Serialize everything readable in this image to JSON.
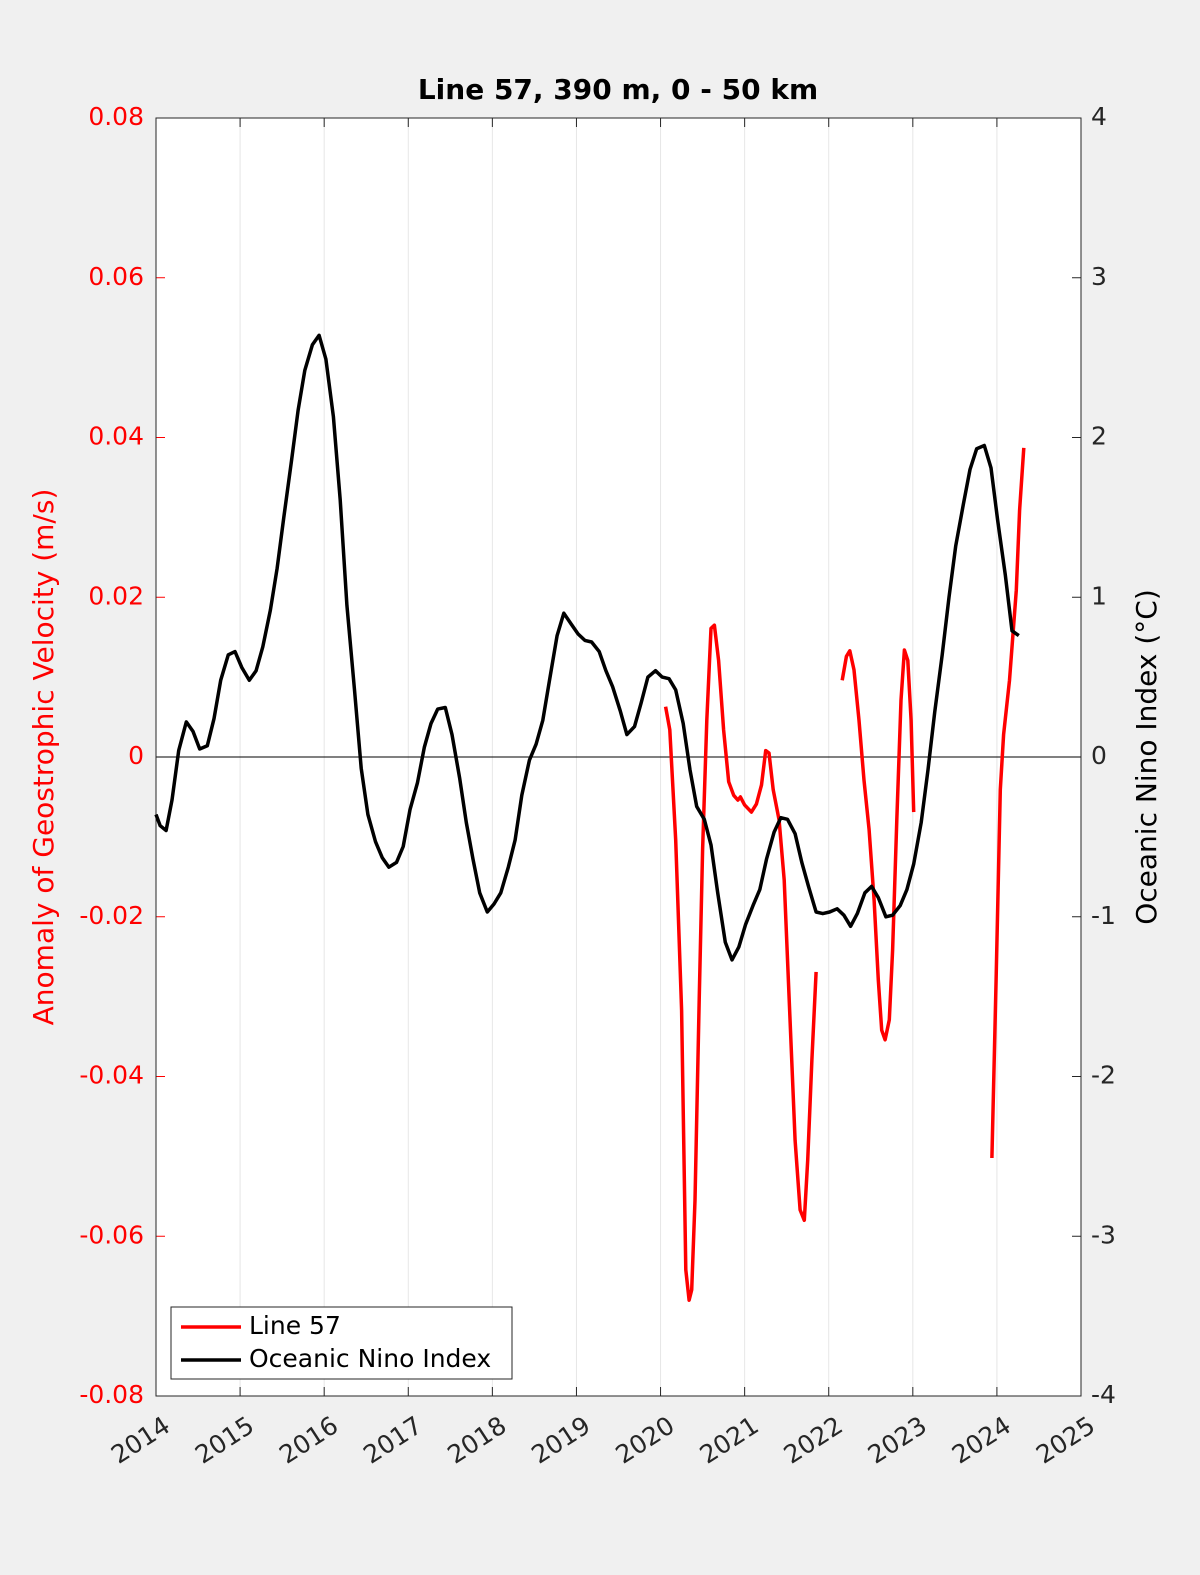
{
  "chart_data": {
    "type": "line",
    "title": "Line 57, 390 m, 0 - 50 km",
    "ylabel": "Anomaly of Geostrophic Velocity (m/s)",
    "y2label": "Oceanic Nino Index (°C)",
    "xlim": [
      2014,
      2025
    ],
    "xticks": [
      2014,
      2015,
      2016,
      2017,
      2018,
      2019,
      2020,
      2021,
      2022,
      2023,
      2024,
      2025
    ],
    "ylim": [
      -0.08,
      0.08
    ],
    "yticks": [
      -0.08,
      -0.06,
      -0.04,
      -0.02,
      0,
      0.02,
      0.04,
      0.06,
      0.08
    ],
    "y2lim": [
      -4,
      4
    ],
    "y2ticks": [
      -4,
      -3,
      -2,
      -1,
      0,
      1,
      2,
      3,
      4
    ],
    "xgrid": true,
    "zero_line": true,
    "ylabel_color": "#ff0000",
    "legend": "lower left",
    "series": [
      {
        "name": "Line 57",
        "color": "#ff0000",
        "axis": "y",
        "x": [
          2020.06,
          2020.11,
          2020.18,
          2020.25,
          2020.3,
          2020.34,
          2020.37,
          2020.41,
          2020.46,
          2020.5,
          2020.55,
          2020.6,
          2020.64,
          2020.69,
          2020.75,
          2020.81,
          2020.87,
          2020.92,
          2020.95,
          2021.0,
          2021.08,
          2021.14,
          2021.2,
          2021.25,
          2021.29,
          2021.34,
          2021.41,
          2021.47,
          2021.53,
          2021.6,
          2021.66,
          2021.71,
          2021.75,
          2021.8,
          2021.85,
          null,
          2022.16,
          2022.21,
          2022.25,
          2022.3,
          2022.36,
          2022.42,
          2022.48,
          2022.54,
          2022.59,
          2022.63,
          2022.67,
          2022.72,
          2022.76,
          2022.81,
          2022.86,
          2022.9,
          2022.94,
          2022.98,
          2023.01,
          null,
          2023.94,
          2023.99,
          2024.04,
          2024.08,
          2024.15,
          2024.23,
          2024.27,
          2024.32
        ],
        "values": [
          0.0063,
          0.0034,
          -0.0104,
          -0.0317,
          -0.0642,
          -0.068,
          -0.0667,
          -0.0555,
          -0.0304,
          -0.0116,
          0.0046,
          0.0161,
          0.0165,
          0.0121,
          0.0034,
          -0.0031,
          -0.0048,
          -0.0054,
          -0.005,
          -0.006,
          -0.0069,
          -0.0059,
          -0.0035,
          0.0008,
          0.0005,
          -0.0041,
          -0.0079,
          -0.0154,
          -0.0304,
          -0.048,
          -0.0567,
          -0.058,
          -0.0505,
          -0.0379,
          -0.0269,
          null,
          0.0096,
          0.0126,
          0.0133,
          0.0109,
          0.0046,
          -0.0029,
          -0.0091,
          -0.0179,
          -0.0279,
          -0.0342,
          -0.0354,
          -0.0329,
          -0.0242,
          -0.0079,
          0.0071,
          0.0134,
          0.0121,
          0.0046,
          -0.0069,
          null,
          -0.0502,
          -0.0279,
          -0.0041,
          0.0028,
          0.0096,
          0.0209,
          0.0309,
          0.0387
        ]
      },
      {
        "name": "Oceanic Nino Index",
        "color": "#000000",
        "axis": "y2",
        "x": [
          2014.0,
          2014.05,
          2014.12,
          2014.19,
          2014.27,
          2014.36,
          2014.44,
          2014.52,
          2014.61,
          2014.69,
          2014.77,
          2014.86,
          2014.94,
          2015.02,
          2015.11,
          2015.19,
          2015.27,
          2015.36,
          2015.44,
          2015.52,
          2015.61,
          2015.69,
          2015.77,
          2015.86,
          2015.94,
          2016.02,
          2016.11,
          2016.19,
          2016.27,
          2016.36,
          2016.44,
          2016.52,
          2016.61,
          2016.69,
          2016.77,
          2016.86,
          2016.94,
          2017.02,
          2017.11,
          2017.19,
          2017.27,
          2017.35,
          2017.44,
          2017.52,
          2017.61,
          2017.69,
          2017.77,
          2017.85,
          2017.94,
          2018.02,
          2018.1,
          2018.19,
          2018.27,
          2018.35,
          2018.44,
          2018.52,
          2018.6,
          2018.68,
          2018.77,
          2018.85,
          2018.94,
          2019.02,
          2019.1,
          2019.18,
          2019.27,
          2019.35,
          2019.43,
          2019.52,
          2019.6,
          2019.69,
          2019.77,
          2019.85,
          2019.94,
          2020.02,
          2020.1,
          2020.18,
          2020.27,
          2020.35,
          2020.43,
          2020.52,
          2020.6,
          2020.68,
          2020.77,
          2020.85,
          2020.93,
          2021.01,
          2021.1,
          2021.18,
          2021.26,
          2021.35,
          2021.43,
          2021.51,
          2021.6,
          2021.68,
          2021.76,
          2021.85,
          2021.93,
          2022.01,
          2022.1,
          2022.18,
          2022.26,
          2022.34,
          2022.43,
          2022.51,
          2022.59,
          2022.68,
          2022.76,
          2022.85,
          2022.93,
          2023.01,
          2023.1,
          2023.18,
          2023.26,
          2023.35,
          2023.43,
          2023.51,
          2023.6,
          2023.68,
          2023.76,
          2023.85,
          2023.93,
          2024.01,
          2024.1,
          2024.18,
          2024.26
        ],
        "values": [
          -0.36,
          -0.43,
          -0.46,
          -0.27,
          0.04,
          0.22,
          0.16,
          0.05,
          0.07,
          0.24,
          0.48,
          0.64,
          0.66,
          0.56,
          0.48,
          0.54,
          0.69,
          0.92,
          1.18,
          1.5,
          1.85,
          2.17,
          2.42,
          2.58,
          2.64,
          2.49,
          2.13,
          1.61,
          0.95,
          0.42,
          -0.07,
          -0.36,
          -0.53,
          -0.63,
          -0.69,
          -0.66,
          -0.56,
          -0.33,
          -0.16,
          0.06,
          0.21,
          0.3,
          0.31,
          0.14,
          -0.13,
          -0.41,
          -0.64,
          -0.85,
          -0.97,
          -0.92,
          -0.85,
          -0.69,
          -0.52,
          -0.24,
          -0.02,
          0.08,
          0.23,
          0.48,
          0.76,
          0.9,
          0.83,
          0.77,
          0.73,
          0.72,
          0.66,
          0.54,
          0.44,
          0.29,
          0.14,
          0.19,
          0.34,
          0.5,
          0.54,
          0.5,
          0.49,
          0.42,
          0.21,
          -0.08,
          -0.31,
          -0.39,
          -0.55,
          -0.85,
          -1.16,
          -1.27,
          -1.19,
          -1.05,
          -0.93,
          -0.83,
          -0.64,
          -0.47,
          -0.38,
          -0.39,
          -0.48,
          -0.66,
          -0.81,
          -0.97,
          -0.98,
          -0.97,
          -0.95,
          -0.99,
          -1.06,
          -0.98,
          -0.85,
          -0.81,
          -0.88,
          -1.0,
          -0.99,
          -0.93,
          -0.83,
          -0.67,
          -0.41,
          -0.08,
          0.28,
          0.64,
          1.0,
          1.32,
          1.58,
          1.8,
          1.93,
          1.95,
          1.81,
          1.48,
          1.14,
          0.79,
          0.76
        ]
      }
    ]
  }
}
